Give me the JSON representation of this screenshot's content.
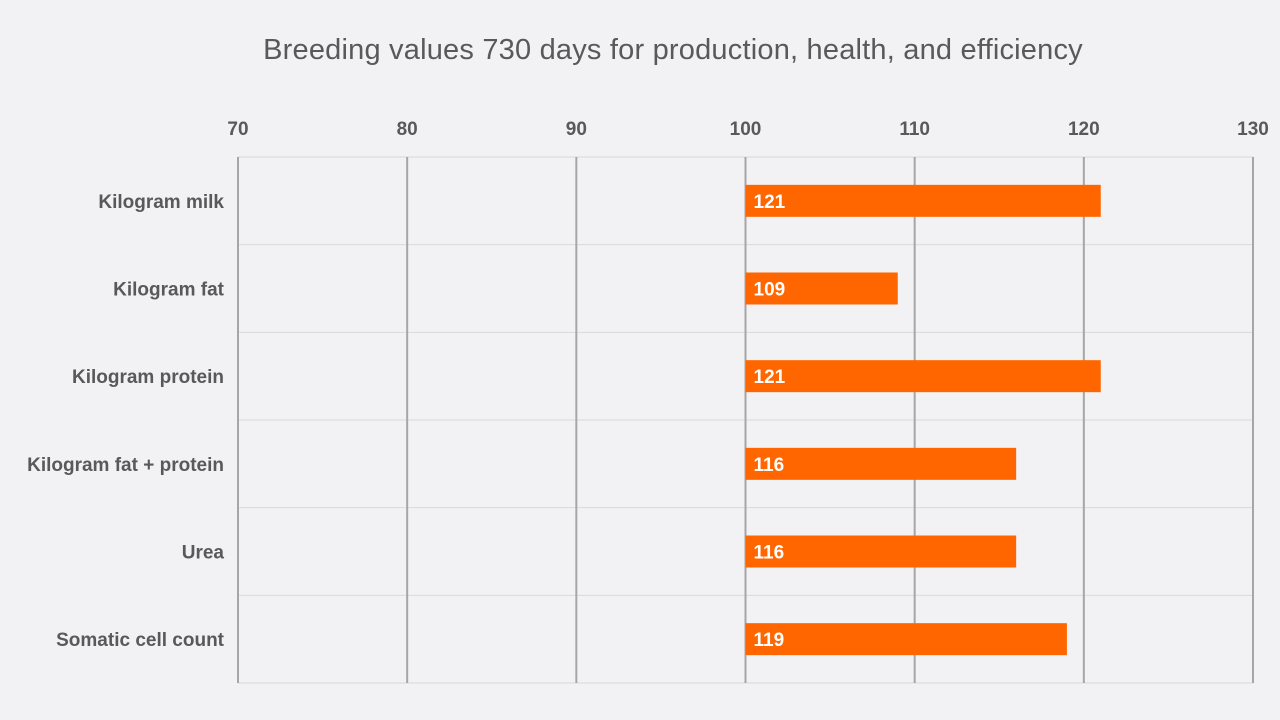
{
  "chart_data": {
    "type": "bar",
    "orientation": "horizontal",
    "title": "Breeding values 730 days for production, health, and efficiency",
    "xlabel": "",
    "ylabel": "",
    "xlim": [
      70,
      130
    ],
    "x_ticks": [
      70,
      80,
      90,
      100,
      110,
      120,
      130
    ],
    "baseline": 100,
    "grid": true,
    "axis_position": "top",
    "categories": [
      "Kilogram milk",
      "Kilogram fat",
      "Kilogram protein",
      "Kilogram fat + protein",
      "Urea",
      "Somatic cell count"
    ],
    "values": [
      121,
      109,
      121,
      116,
      116,
      119
    ],
    "data_labels": [
      "121",
      "109",
      "121",
      "116",
      "116",
      "119"
    ],
    "bar_color": "#ff6600"
  }
}
